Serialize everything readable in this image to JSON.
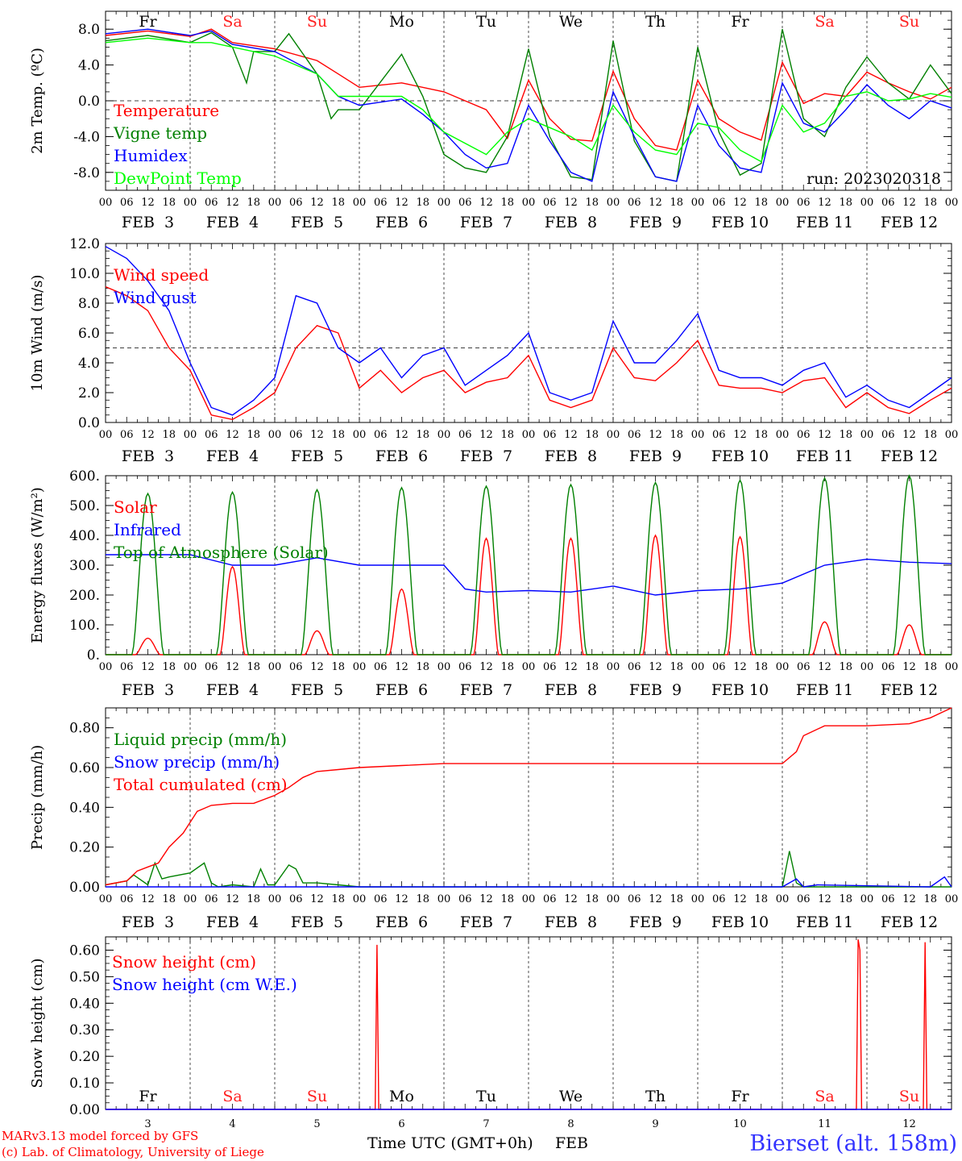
{
  "page": {
    "run_label": "run: 2023020318",
    "footer_model": "MARv3.13 model forced by GFS",
    "footer_credit": "(c) Lab. of Climatology, University of Liege",
    "xlabel": "Time UTC (GMT+0h)",
    "xlabel_month": "FEB",
    "station": "Bierset (alt. 158m)"
  },
  "axis": {
    "hour_ticks": [
      "00",
      "06",
      "12",
      "18"
    ],
    "final_hour": "00",
    "date_labels": [
      "FEB  3",
      "FEB  4",
      "FEB  5",
      "FEB  6",
      "FEB  7",
      "FEB  8",
      "FEB  9",
      "FEB 10",
      "FEB 11",
      "FEB 12"
    ],
    "day_numbers": [
      "3",
      "4",
      "5",
      "6",
      "7",
      "8",
      "9",
      "10",
      "11",
      "12"
    ],
    "weekdays": [
      "Fr",
      "Sa",
      "Su",
      "Mo",
      "Tu",
      "We",
      "Th",
      "Fr",
      "Sa",
      "Su"
    ],
    "weekend_flags": [
      false,
      true,
      true,
      false,
      false,
      false,
      false,
      false,
      true,
      true
    ],
    "weekday_color": "#000000",
    "weekend_color": "#ff2020"
  },
  "chart_data": [
    {
      "type": "line",
      "ylabel": "2m Temp. (ºC)",
      "ylim": [
        -10,
        10
      ],
      "yticks": [
        -8,
        -4,
        0,
        4,
        8
      ],
      "ytick_labels": [
        "-8.0",
        "-4.0",
        "0.0",
        "4.0",
        "8.0"
      ],
      "hline": 0,
      "x_unit": "hours since FEB 3 00 UTC",
      "legend": [
        {
          "name": "Temperature",
          "color": "#ff0000"
        },
        {
          "name": "Vigne temp",
          "color": "#008000"
        },
        {
          "name": "Humidex",
          "color": "#0000ff"
        },
        {
          "name": "DewPoint Temp",
          "color": "#00ff00"
        }
      ],
      "series": [
        {
          "name": "Temperature",
          "color": "#ff0000",
          "x": [
            0,
            12,
            24,
            30,
            36,
            48,
            60,
            66,
            72,
            84,
            96,
            108,
            114,
            120,
            126,
            132,
            138,
            144,
            150,
            156,
            162,
            168,
            174,
            180,
            186,
            192,
            198,
            204,
            210,
            216,
            222,
            228,
            234,
            240
          ],
          "y": [
            7.3,
            7.8,
            7.2,
            8.0,
            6.5,
            5.8,
            4.5,
            3.0,
            1.5,
            2.0,
            1.0,
            -1.0,
            -4.2,
            2.3,
            -2.0,
            -4.3,
            -4.5,
            3.3,
            -2.0,
            -5.0,
            -5.5,
            2.3,
            -2.0,
            -3.5,
            -4.4,
            4.3,
            -0.3,
            0.8,
            0.5,
            3.2,
            2.0,
            1.0,
            0.2,
            1.5
          ]
        },
        {
          "name": "Vigne temp",
          "color": "#008000",
          "x": [
            0,
            12,
            24,
            30,
            36,
            40,
            42,
            48,
            52,
            60,
            64,
            66,
            72,
            84,
            90,
            96,
            102,
            108,
            114,
            120,
            126,
            132,
            138,
            144,
            150,
            156,
            162,
            168,
            174,
            180,
            186,
            192,
            198,
            204,
            210,
            216,
            222,
            228,
            234,
            240
          ],
          "y": [
            6.7,
            7.3,
            6.5,
            7.6,
            6.0,
            2.0,
            5.5,
            5.5,
            7.5,
            3.0,
            -2.0,
            -1.0,
            -1.0,
            5.2,
            0.5,
            -6.0,
            -7.5,
            -8.0,
            -4.0,
            5.8,
            -4.0,
            -8.5,
            -8.8,
            6.7,
            -4.5,
            -8.5,
            -9.0,
            6.0,
            -3.5,
            -8.3,
            -7.0,
            8.0,
            -2.0,
            -4.0,
            1.5,
            4.9,
            2.0,
            0.2,
            4.0,
            0.8
          ]
        },
        {
          "name": "Humidex",
          "color": "#0000ff",
          "x": [
            0,
            12,
            24,
            30,
            36,
            48,
            60,
            66,
            72,
            84,
            90,
            96,
            102,
            108,
            114,
            120,
            126,
            132,
            138,
            144,
            150,
            156,
            162,
            168,
            174,
            180,
            186,
            192,
            198,
            204,
            210,
            216,
            222,
            228,
            234,
            240
          ],
          "y": [
            7.5,
            8.0,
            7.3,
            7.8,
            6.3,
            5.5,
            3.0,
            0.5,
            -0.5,
            0.2,
            -1.5,
            -3.5,
            -6.0,
            -7.5,
            -7.0,
            -0.5,
            -4.5,
            -8.0,
            -9.0,
            1.0,
            -4.0,
            -8.5,
            -9.0,
            -0.5,
            -5.0,
            -7.5,
            -8.0,
            2.0,
            -2.5,
            -3.5,
            -1.0,
            1.8,
            -0.5,
            -2.0,
            0.0,
            -0.8
          ]
        },
        {
          "name": "DewPoint Temp",
          "color": "#00ff00",
          "x": [
            0,
            12,
            24,
            30,
            36,
            48,
            60,
            66,
            72,
            84,
            90,
            96,
            108,
            114,
            120,
            126,
            132,
            138,
            144,
            150,
            156,
            162,
            168,
            174,
            180,
            186,
            192,
            198,
            204,
            210,
            216,
            222,
            228,
            234,
            240
          ],
          "y": [
            6.5,
            7.0,
            6.5,
            6.5,
            6.0,
            5.0,
            3.0,
            0.5,
            0.5,
            0.5,
            -1.0,
            -3.5,
            -6.0,
            -3.5,
            -2.0,
            -3.0,
            -4.0,
            -5.5,
            -0.5,
            -3.5,
            -5.5,
            -6.0,
            -2.5,
            -3.0,
            -5.5,
            -6.8,
            -0.5,
            -3.5,
            -2.5,
            0.5,
            1.0,
            0.0,
            0.2,
            0.8,
            0.4
          ]
        }
      ]
    },
    {
      "type": "line",
      "ylabel": "10m Wind (m/s)",
      "ylim": [
        0,
        12
      ],
      "yticks": [
        0,
        2,
        4,
        6,
        8,
        10,
        12
      ],
      "ytick_labels": [
        "0.0",
        "2.0",
        "4.0",
        "6.0",
        "8.0",
        "10.0",
        "12.0"
      ],
      "hline": 5,
      "legend": [
        {
          "name": "Wind speed",
          "color": "#ff0000"
        },
        {
          "name": "Wind gust",
          "color": "#0000ff"
        }
      ],
      "series": [
        {
          "name": "Wind speed",
          "color": "#ff0000",
          "x": [
            0,
            6,
            12,
            18,
            24,
            30,
            36,
            42,
            48,
            54,
            60,
            66,
            72,
            78,
            84,
            90,
            96,
            102,
            108,
            114,
            120,
            126,
            132,
            138,
            144,
            150,
            156,
            162,
            168,
            174,
            180,
            186,
            192,
            198,
            204,
            210,
            216,
            222,
            228,
            234,
            240
          ],
          "y": [
            9.1,
            8.5,
            7.5,
            5.0,
            3.5,
            0.5,
            0.2,
            1.0,
            2.0,
            5.0,
            6.5,
            6.0,
            2.3,
            3.5,
            2.0,
            3.0,
            3.5,
            2.0,
            2.7,
            3.0,
            4.5,
            1.5,
            1.0,
            1.5,
            5.0,
            3.0,
            2.8,
            4.0,
            5.5,
            2.5,
            2.3,
            2.3,
            2.0,
            2.8,
            3.0,
            1.0,
            2.0,
            1.0,
            0.6,
            1.5,
            2.3
          ]
        },
        {
          "name": "Wind gust",
          "color": "#0000ff",
          "x": [
            0,
            6,
            12,
            18,
            24,
            30,
            36,
            42,
            48,
            54,
            60,
            66,
            72,
            78,
            84,
            90,
            96,
            102,
            108,
            114,
            120,
            126,
            132,
            138,
            144,
            150,
            156,
            162,
            168,
            174,
            180,
            186,
            192,
            198,
            204,
            210,
            216,
            222,
            228,
            234,
            240
          ],
          "y": [
            11.8,
            11.0,
            9.5,
            7.5,
            4.0,
            1.0,
            0.5,
            1.5,
            3.0,
            8.5,
            8.0,
            5.0,
            4.0,
            5.0,
            3.0,
            4.5,
            5.0,
            2.5,
            3.5,
            4.5,
            6.0,
            2.0,
            1.5,
            2.0,
            6.8,
            4.0,
            4.0,
            5.5,
            7.3,
            3.5,
            3.0,
            3.0,
            2.5,
            3.5,
            4.0,
            1.7,
            2.5,
            1.5,
            1.0,
            2.0,
            3.0
          ]
        }
      ]
    },
    {
      "type": "line",
      "ylabel": "Energy fluxes (W/m²)",
      "ylim": [
        0,
        600
      ],
      "yticks": [
        0,
        100,
        200,
        300,
        400,
        500,
        600
      ],
      "ytick_labels": [
        "0.",
        "100.",
        "200.",
        "300.",
        "400.",
        "500.",
        "600."
      ],
      "legend": [
        {
          "name": "Solar",
          "color": "#ff0000"
        },
        {
          "name": "Infrared",
          "color": "#0000ff"
        },
        {
          "name": "Top of Atmosphere (Solar)",
          "color": "#008000"
        }
      ],
      "series": [
        {
          "name": "Solar",
          "color": "#ff0000",
          "daily_peaks": [
            55,
            295,
            80,
            220,
            390,
            390,
            400,
            395,
            110,
            100
          ]
        },
        {
          "name": "Infrared",
          "color": "#0000ff",
          "x": [
            0,
            24,
            36,
            48,
            60,
            72,
            96,
            102,
            108,
            120,
            132,
            144,
            156,
            168,
            180,
            192,
            204,
            216,
            228,
            240
          ],
          "y": [
            335,
            335,
            300,
            300,
            325,
            300,
            300,
            220,
            210,
            215,
            210,
            230,
            200,
            215,
            220,
            240,
            300,
            320,
            310,
            305
          ]
        },
        {
          "name": "Top of Atmosphere (Solar)",
          "color": "#008000",
          "daily_peaks": [
            540,
            545,
            553,
            560,
            565,
            570,
            577,
            585,
            592,
            600
          ]
        }
      ]
    },
    {
      "type": "line",
      "ylabel": "Precip (mm/h)",
      "ylim": [
        0,
        0.9
      ],
      "yticks": [
        0,
        0.2,
        0.4,
        0.6,
        0.8
      ],
      "ytick_labels": [
        "0.00",
        "0.20",
        "0.40",
        "0.60",
        "0.80"
      ],
      "legend": [
        {
          "name": "Liquid precip (mm/h)",
          "color": "#008000"
        },
        {
          "name": "Snow precip (mm/h)",
          "color": "#0000ff"
        },
        {
          "name": "Total cumulated (cm)",
          "color": "#ff0000"
        }
      ],
      "series": [
        {
          "name": "Liquid precip (mm/h)",
          "color": "#008000",
          "x": [
            0,
            6,
            8,
            12,
            14,
            16,
            18,
            24,
            28,
            30,
            32,
            36,
            42,
            44,
            46,
            48,
            52,
            54,
            56,
            60,
            66,
            72,
            96,
            192,
            194,
            196,
            198,
            204,
            240
          ],
          "y": [
            0.01,
            0.03,
            0.06,
            0.01,
            0.12,
            0.04,
            0.05,
            0.07,
            0.12,
            0.02,
            0.0,
            0.01,
            0.0,
            0.09,
            0.01,
            0.01,
            0.11,
            0.09,
            0.02,
            0.02,
            0.01,
            0.0,
            0.0,
            0.0,
            0.18,
            0.02,
            0.0,
            0.0,
            0.0
          ]
        },
        {
          "name": "Snow precip (mm/h)",
          "color": "#0000ff",
          "x": [
            0,
            192,
            196,
            198,
            202,
            234,
            238,
            240
          ],
          "y": [
            0,
            0,
            0.04,
            0.0,
            0.01,
            0.0,
            0.05,
            0.0
          ]
        },
        {
          "name": "Total cumulated (cm)",
          "color": "#ff0000",
          "x": [
            0,
            6,
            9,
            12,
            15,
            18,
            22,
            26,
            30,
            36,
            42,
            48,
            52,
            56,
            60,
            66,
            72,
            84,
            96,
            192,
            196,
            198,
            204,
            216,
            228,
            234,
            240
          ],
          "y": [
            0.01,
            0.03,
            0.08,
            0.1,
            0.12,
            0.2,
            0.27,
            0.38,
            0.41,
            0.42,
            0.42,
            0.46,
            0.5,
            0.55,
            0.58,
            0.59,
            0.6,
            0.61,
            0.62,
            0.62,
            0.68,
            0.76,
            0.81,
            0.81,
            0.82,
            0.85,
            0.9
          ]
        }
      ]
    },
    {
      "type": "line",
      "ylabel": "Snow height (cm)",
      "ylim": [
        0,
        0.65
      ],
      "yticks": [
        0,
        0.1,
        0.2,
        0.3,
        0.4,
        0.5,
        0.6
      ],
      "ytick_labels": [
        "0.00",
        "0.10",
        "0.20",
        "0.30",
        "0.40",
        "0.50",
        "0.60"
      ],
      "legend": [
        {
          "name": "Snow height (cm)",
          "color": "#ff0000"
        },
        {
          "name": "Snow height (cm W.E.)",
          "color": "#0000ff"
        }
      ],
      "series": [
        {
          "name": "Snow height (cm)",
          "color": "#ff0000",
          "x": [
            0,
            76.5,
            77,
            77.5,
            78,
            213,
            213.5,
            214,
            214.5,
            232,
            232.5,
            233,
            240
          ],
          "y": [
            0,
            0,
            0.62,
            0,
            0,
            0,
            0.64,
            0.6,
            0,
            0,
            0.63,
            0,
            0
          ]
        },
        {
          "name": "Snow height (cm W.E.)",
          "color": "#0000ff",
          "x": [
            0,
            240
          ],
          "y": [
            0,
            0
          ]
        }
      ]
    }
  ]
}
